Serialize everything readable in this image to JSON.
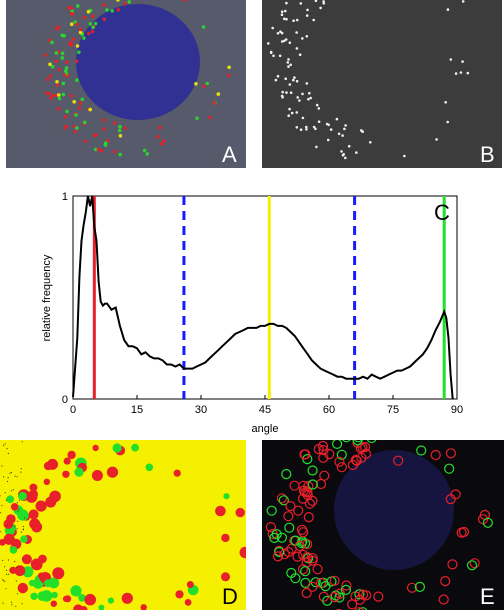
{
  "panels": {
    "a": {
      "label": "A"
    },
    "b": {
      "label": "B"
    },
    "c": {
      "label": "C"
    },
    "d": {
      "label": "D"
    },
    "e": {
      "label": "E"
    }
  },
  "colors": {
    "red": "#e8202a",
    "green": "#22e02a",
    "yellow": "#f5f000",
    "blue": "#1a1aff",
    "curve": "#000000",
    "nucleus": "#2a2a9a"
  },
  "chart_data": {
    "type": "line",
    "xlabel": "angle",
    "ylabel": "relative frequency",
    "xlim": [
      0,
      90
    ],
    "ylim": [
      0,
      1
    ],
    "xticks": [
      "0",
      "15",
      "30",
      "45",
      "60",
      "75",
      "90"
    ],
    "yticks": [
      "0",
      "1"
    ],
    "grid": false,
    "series": [
      {
        "x": [
          0,
          1,
          1.5,
          2,
          2.5,
          3,
          3.5,
          4,
          4.5,
          5,
          5.5,
          6,
          6.5,
          7,
          7.5,
          8,
          9,
          10,
          11,
          12,
          13,
          14,
          15,
          16,
          17,
          18,
          19,
          20,
          21,
          22,
          23,
          24,
          25,
          26,
          27,
          28,
          29,
          30,
          31,
          32,
          33,
          34,
          35,
          36,
          37,
          38,
          39,
          40,
          41,
          42,
          43,
          44,
          45,
          46,
          47,
          48,
          49,
          50,
          51,
          52,
          53,
          54,
          55,
          56,
          57,
          58,
          59,
          60,
          61,
          62,
          63,
          64,
          65,
          66,
          67,
          68,
          69,
          70,
          71,
          72,
          73,
          74,
          75,
          76,
          77,
          78,
          79,
          80,
          81,
          82,
          83,
          84,
          85,
          86,
          87,
          87.5,
          88,
          88.5,
          89
        ],
        "y": [
          0.01,
          0.3,
          0.6,
          0.78,
          0.86,
          0.92,
          1.0,
          0.95,
          1.0,
          0.85,
          0.78,
          0.58,
          0.48,
          0.46,
          0.47,
          0.47,
          0.44,
          0.45,
          0.36,
          0.29,
          0.26,
          0.26,
          0.25,
          0.22,
          0.23,
          0.21,
          0.2,
          0.2,
          0.19,
          0.17,
          0.17,
          0.16,
          0.17,
          0.15,
          0.15,
          0.15,
          0.16,
          0.17,
          0.18,
          0.2,
          0.22,
          0.24,
          0.26,
          0.28,
          0.3,
          0.32,
          0.33,
          0.34,
          0.35,
          0.35,
          0.35,
          0.36,
          0.36,
          0.37,
          0.37,
          0.36,
          0.36,
          0.35,
          0.33,
          0.31,
          0.28,
          0.25,
          0.22,
          0.19,
          0.17,
          0.15,
          0.14,
          0.13,
          0.12,
          0.11,
          0.11,
          0.1,
          0.1,
          0.1,
          0.1,
          0.11,
          0.1,
          0.12,
          0.11,
          0.1,
          0.11,
          0.12,
          0.13,
          0.14,
          0.14,
          0.15,
          0.16,
          0.18,
          0.2,
          0.22,
          0.25,
          0.29,
          0.34,
          0.38,
          0.43,
          0.4,
          0.3,
          0.12,
          0.0
        ]
      }
    ],
    "vlines": [
      {
        "x": 5,
        "color": "red",
        "style": "solid"
      },
      {
        "x": 26,
        "color": "blue",
        "style": "dashed"
      },
      {
        "x": 46,
        "color": "yellow",
        "style": "solid"
      },
      {
        "x": 66,
        "color": "blue",
        "style": "dashed"
      },
      {
        "x": 87,
        "color": "green",
        "style": "solid"
      }
    ]
  }
}
